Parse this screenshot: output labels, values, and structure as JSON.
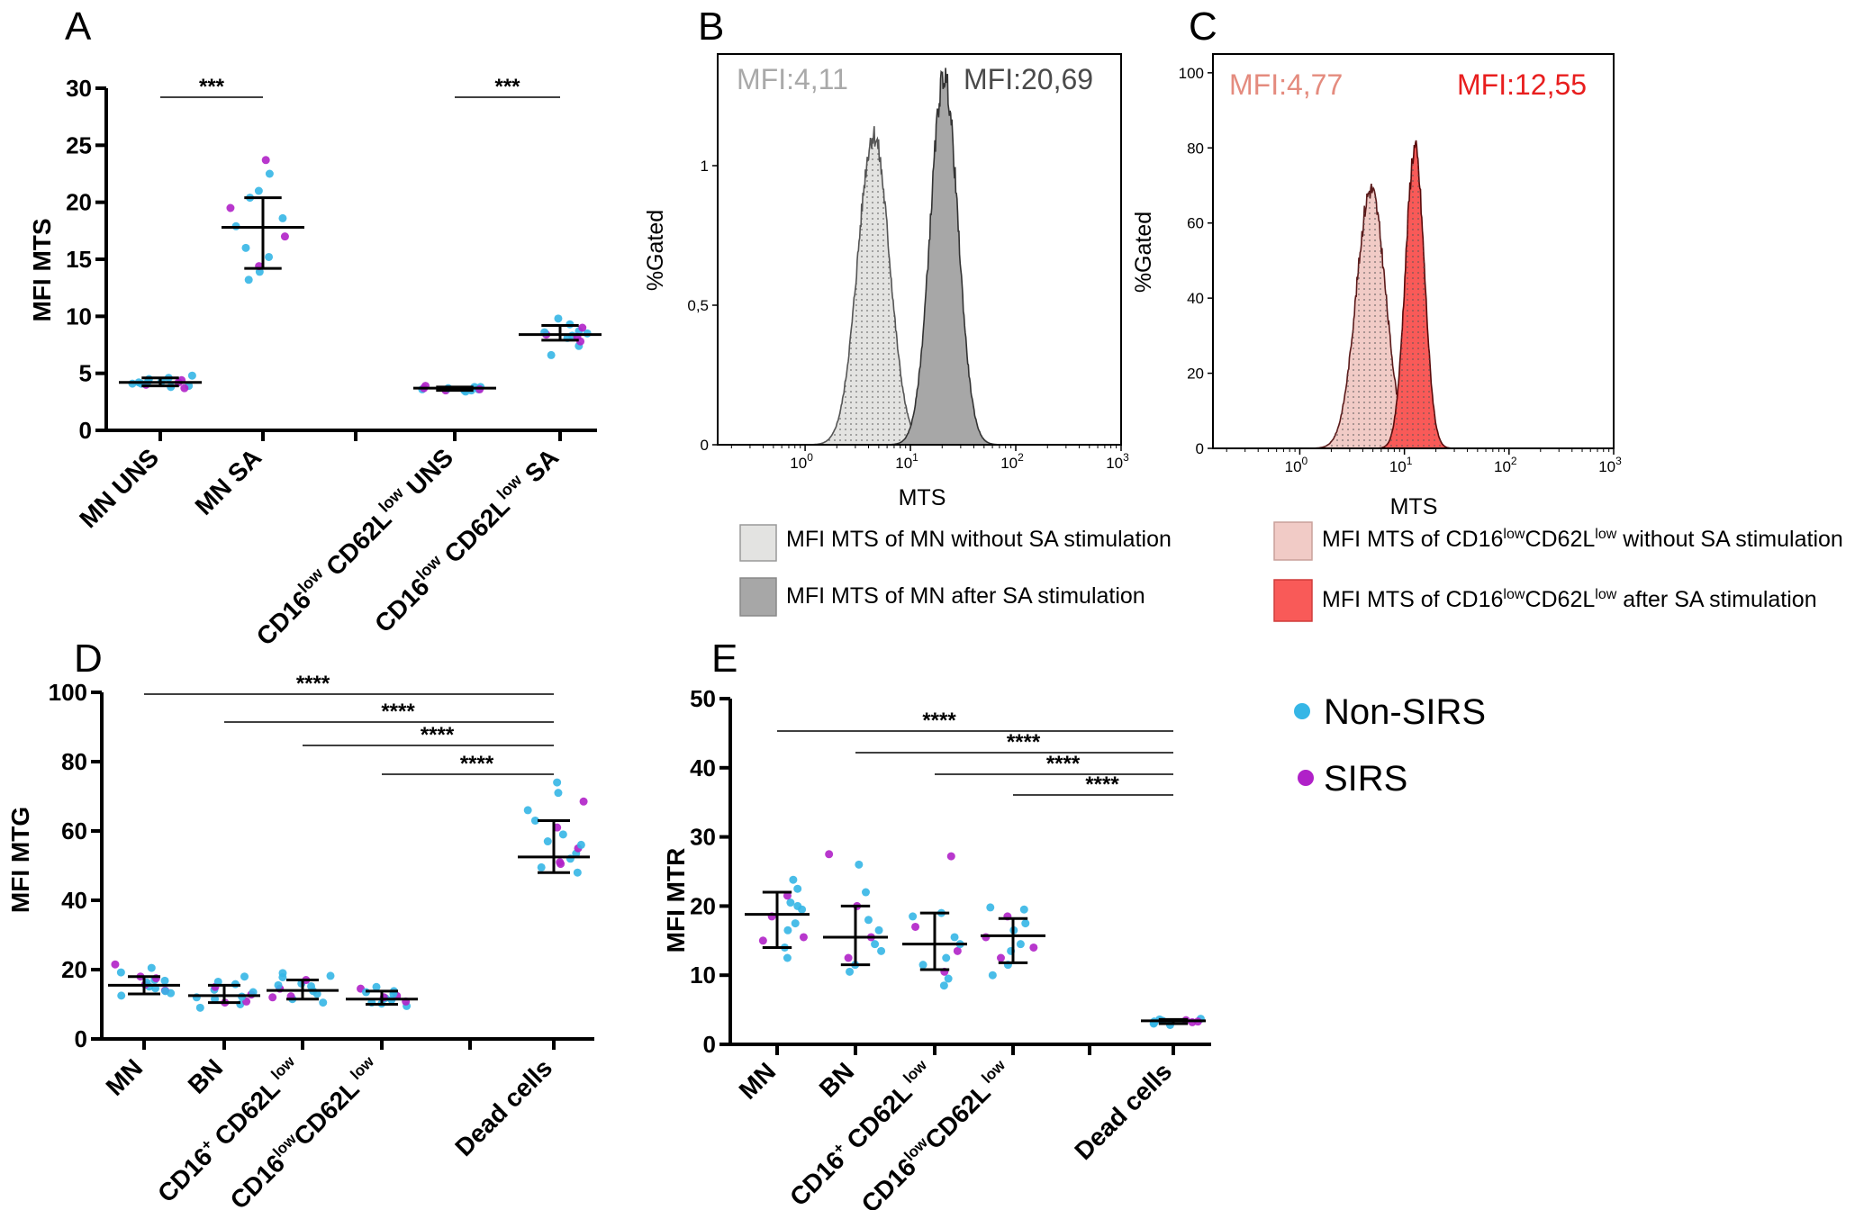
{
  "colors": {
    "non_sirs": "#35b6e6",
    "sirs": "#b021c8",
    "mn_uns": "#e3e3e1",
    "mn_sa": "#a7a7a7",
    "cd_uns": "#f1cbc6",
    "cd_sa": "#f95a58",
    "mfi_b1": "#a9a9a9",
    "mfi_b2": "#4a4a4a",
    "mfi_c1": "#e48b7e",
    "mfi_c2": "#e81e1e"
  },
  "chart_data": [
    {
      "panel": "A",
      "type": "scatter",
      "title": "",
      "ylabel": "MFI MTS",
      "ylim": [
        0,
        30
      ],
      "yticks": [
        "0",
        "5",
        "10",
        "15",
        "20",
        "25",
        "30"
      ],
      "categories": [
        "MN UNS",
        "MN SA",
        "",
        "CD16low CD62Llow UNS",
        "CD16low CD62Llow SA"
      ],
      "groups": [
        {
          "x": 0,
          "median": 4.2,
          "q1": 3.9,
          "q3": 4.6,
          "points": [
            3.8,
            3.9,
            4.0,
            4.1,
            4.1,
            4.2,
            4.2,
            4.3,
            4.4,
            4.5,
            4.6,
            3.7,
            4.8,
            4.3
          ]
        },
        {
          "x": 1,
          "median": 17.8,
          "q1": 14.2,
          "q3": 20.4,
          "points": [
            13.2,
            13.9,
            14.4,
            15.2,
            16.0,
            17.0,
            17.9,
            18.6,
            19.5,
            20.4,
            21.0,
            23.7,
            22.5
          ]
        },
        {
          "x": 3,
          "median": 3.7,
          "q1": 3.5,
          "q3": 3.8,
          "points": [
            3.4,
            3.5,
            3.5,
            3.6,
            3.6,
            3.7,
            3.7,
            3.8,
            3.9,
            3.8,
            3.5,
            3.6
          ]
        },
        {
          "x": 4,
          "median": 8.4,
          "q1": 7.9,
          "q3": 9.2,
          "points": [
            6.6,
            7.4,
            7.8,
            8.1,
            8.3,
            8.4,
            8.5,
            8.7,
            9.0,
            9.3,
            9.8,
            8.2,
            8.6
          ]
        }
      ],
      "sig_labels": [
        "***",
        "***"
      ]
    },
    {
      "panel": "B",
      "type": "histogram",
      "ylabel": "%Gated",
      "xlabel": "MTS",
      "yticks": [
        "0",
        "0,5",
        "1"
      ],
      "ymax": 1.4,
      "xticks": [
        "10",
        "10",
        "10",
        "10"
      ],
      "xtick_exp": [
        "0",
        "1",
        "2",
        "3"
      ],
      "series": [
        {
          "name": "MFI MTS of MN without  SA stimulation",
          "label": "MFI:4,11",
          "mean_log": 0.65,
          "sd_log": 0.15,
          "peak": 1.11
        },
        {
          "name": "MFI MTS of MN after  SA stimulation",
          "label": "MFI:20,69",
          "mean_log": 1.32,
          "sd_log": 0.13,
          "peak": 1.32
        }
      ]
    },
    {
      "panel": "C",
      "type": "histogram",
      "ylabel": "%Gated",
      "xlabel": "MTS",
      "yticks": [
        "0",
        "20",
        "40",
        "60",
        "80",
        "100"
      ],
      "ymax": 105,
      "xticks": [
        "10",
        "10",
        "10",
        "10"
      ],
      "xtick_exp": [
        "0",
        "1",
        "2",
        "3"
      ],
      "series": [
        {
          "name": "MFI MTS of CD16lowCD62Llow without  SA stimulation",
          "label": "MFI:4,77",
          "mean_log": 0.68,
          "sd_log": 0.14,
          "peak": 69
        },
        {
          "name": "MFI MTS of CD16lowCD62Llow  after  SA stimulation",
          "label": "MFI:12,55",
          "mean_log": 1.1,
          "sd_log": 0.09,
          "peak": 80
        }
      ]
    },
    {
      "panel": "D",
      "type": "scatter",
      "ylabel": "MFI MTG",
      "ylim": [
        0,
        100
      ],
      "yticks": [
        "0",
        "20",
        "40",
        "60",
        "80",
        "100"
      ],
      "categories": [
        "MN",
        "BN",
        "CD16+ CD62Llow",
        "CD16lowCD62Llow",
        "",
        "Dead cells"
      ],
      "groups": [
        {
          "x": 0,
          "median": 15.5,
          "q1": 13.0,
          "q3": 18.0,
          "points": [
            12.5,
            13.2,
            14.0,
            14.6,
            15.1,
            15.7,
            16.3,
            17.0,
            18.0,
            19.2,
            20.5,
            21.5,
            16.8,
            13.8,
            17.5
          ]
        },
        {
          "x": 1,
          "median": 12.5,
          "q1": 10.5,
          "q3": 15.5,
          "points": [
            9.0,
            10.0,
            10.8,
            11.5,
            12.2,
            12.8,
            13.5,
            14.2,
            15.0,
            16.5,
            18.0,
            10.5,
            12.0,
            15.8
          ]
        },
        {
          "x": 2,
          "median": 14.0,
          "q1": 11.5,
          "q3": 17.0,
          "points": [
            10.5,
            11.5,
            12.3,
            13.0,
            13.8,
            14.5,
            15.2,
            16.0,
            17.0,
            18.2,
            19.0,
            12.0,
            15.5,
            17.8
          ]
        },
        {
          "x": 3,
          "median": 11.5,
          "q1": 10.0,
          "q3": 13.8,
          "points": [
            9.5,
            10.2,
            10.8,
            11.3,
            11.8,
            12.4,
            13.0,
            13.8,
            14.5,
            15.0,
            10.5,
            12.0,
            13.5
          ]
        },
        {
          "x": 5,
          "median": 52.5,
          "q1": 48.0,
          "q3": 63.0,
          "points": [
            48.0,
            49.5,
            51.0,
            52.0,
            53.5,
            55.0,
            57.0,
            59.0,
            61.0,
            63.0,
            66.0,
            68.5,
            71.0,
            74.0,
            50.5,
            56.0
          ]
        }
      ],
      "sig_labels": [
        "****",
        "****",
        "****",
        "****"
      ]
    },
    {
      "panel": "E",
      "type": "scatter",
      "ylabel": "MFI MTR",
      "ylim": [
        0,
        50
      ],
      "yticks": [
        "0",
        "10",
        "20",
        "30",
        "40",
        "50"
      ],
      "categories": [
        "MN",
        "BN",
        "CD16+ CD62Llow",
        "CD16lowCD62Llow",
        "",
        "Dead cells"
      ],
      "groups": [
        {
          "x": 0,
          "median": 18.8,
          "q1": 14.0,
          "q3": 22.0,
          "points": [
            12.5,
            14.0,
            15.5,
            16.5,
            17.5,
            18.5,
            19.5,
            20.5,
            21.5,
            22.5,
            23.8,
            15.0,
            20.0
          ]
        },
        {
          "x": 1,
          "median": 15.5,
          "q1": 11.5,
          "q3": 20.0,
          "points": [
            10.5,
            11.5,
            12.5,
            13.5,
            14.5,
            15.5,
            16.5,
            18.0,
            20.0,
            22.0,
            26.0,
            27.5
          ]
        },
        {
          "x": 2,
          "median": 14.5,
          "q1": 10.8,
          "q3": 19.0,
          "points": [
            8.5,
            9.5,
            10.5,
            11.5,
            12.5,
            13.5,
            14.5,
            15.5,
            17.0,
            18.5,
            19.0,
            27.2
          ]
        },
        {
          "x": 3,
          "median": 15.7,
          "q1": 11.8,
          "q3": 18.2,
          "points": [
            10.0,
            11.5,
            12.5,
            13.5,
            14.5,
            15.5,
            16.5,
            17.5,
            18.5,
            19.5,
            19.8,
            14.0
          ]
        },
        {
          "x": 5,
          "median": 3.4,
          "q1": 3.0,
          "q3": 3.6,
          "points": [
            2.8,
            3.0,
            3.2,
            3.3,
            3.4,
            3.5,
            3.6,
            3.7,
            3.3,
            3.1
          ]
        }
      ],
      "sig_labels": [
        "****",
        "****",
        "****",
        "****"
      ]
    }
  ],
  "panels": {
    "a": "A",
    "b": "B",
    "c": "C",
    "d": "D",
    "e": "E"
  },
  "labels": {
    "a_cat": [
      "MN UNS",
      "MN SA"
    ],
    "cd16": "CD16",
    "cd62l": "CD62L",
    "low": "low",
    "uns": "UNS",
    "sa": "SA",
    "plus": "+",
    "mn": "MN",
    "bn": "BN",
    "dead": "Dead cells",
    "mfi_prefix": "MFI MTS of ",
    "cdleg_prefix": "MFI MTS of CD16",
    "cdleg_mid": "CD62L",
    "leg_uns_suffix": "without  SA stimulation",
    "leg_sa_suffix": " after  SA stimulation",
    "leg_mn_uns": "MFI MTS of MN without  SA stimulation",
    "leg_mn_sa": "MFI MTS of MN after  SA stimulation"
  },
  "legend_groups": [
    {
      "name": "Non-SIRS",
      "color": "#35b6e6"
    },
    {
      "name": "SIRS",
      "color": "#b021c8"
    }
  ]
}
